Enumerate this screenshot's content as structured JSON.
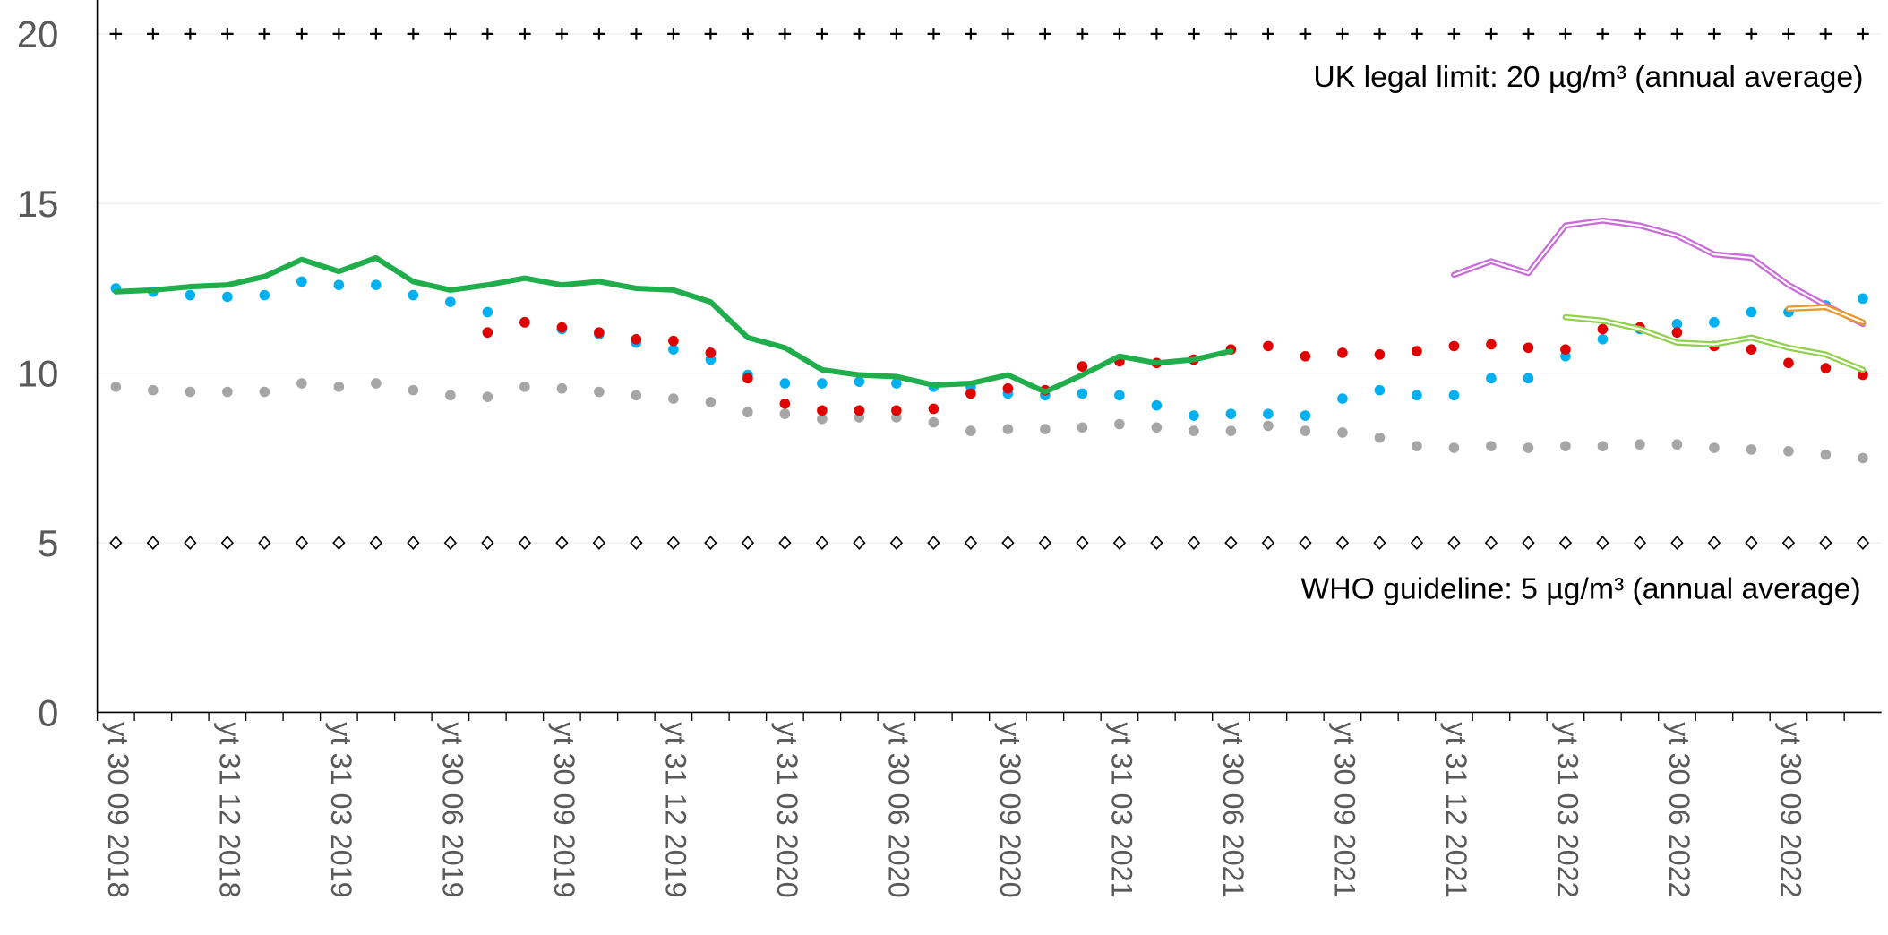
{
  "chart_data": {
    "type": "line",
    "categories": [
      "yt 30 09 2018",
      null,
      null,
      "yt 31 12 2018",
      null,
      null,
      "yt 31 03 2019",
      null,
      null,
      "yt 30 06 2019",
      null,
      null,
      "yt 30 09 2019",
      null,
      null,
      "yt 31 12 2019",
      null,
      null,
      "yt 31 03 2020",
      null,
      null,
      "yt 30 06 2020",
      null,
      null,
      "yt 30 09 2020",
      null,
      null,
      "yt 31 03 2021",
      null,
      null,
      "yt 30 06 2021",
      null,
      null,
      "yt 30 09 2021",
      null,
      null,
      "yt 31 12 2021",
      null,
      null,
      "yt 31 03 2022",
      null,
      null,
      "yt 30 06 2022",
      null,
      null,
      "yt 30 09 2022",
      null,
      null
    ],
    "ylim": [
      0,
      21
    ],
    "yticks": [
      0,
      5,
      10,
      15,
      20
    ],
    "grid": true,
    "annotations": [
      "UK legal limit:  20 µg/m³ (annual average)",
      "WHO guideline:  5 µg/m³ (annual average)"
    ],
    "series": [
      {
        "style": "plus",
        "color": "#000000",
        "values": [
          20,
          20,
          20,
          20,
          20,
          20,
          20,
          20,
          20,
          20,
          20,
          20,
          20,
          20,
          20,
          20,
          20,
          20,
          20,
          20,
          20,
          20,
          20,
          20,
          20,
          20,
          20,
          20,
          20,
          20,
          20,
          20,
          20,
          20,
          20,
          20,
          20,
          20,
          20,
          20,
          20,
          20,
          20,
          20,
          20,
          20,
          20,
          20
        ]
      },
      {
        "style": "diamond",
        "color": "#000000",
        "values": [
          5,
          5,
          5,
          5,
          5,
          5,
          5,
          5,
          5,
          5,
          5,
          5,
          5,
          5,
          5,
          5,
          5,
          5,
          5,
          5,
          5,
          5,
          5,
          5,
          5,
          5,
          5,
          5,
          5,
          5,
          5,
          5,
          5,
          5,
          5,
          5,
          5,
          5,
          5,
          5,
          5,
          5,
          5,
          5,
          5,
          5,
          5,
          5
        ]
      },
      {
        "style": "dots",
        "color": "#a6a6a6",
        "values": [
          9.6,
          9.5,
          9.45,
          9.45,
          9.45,
          9.7,
          9.6,
          9.7,
          9.5,
          9.35,
          9.3,
          9.6,
          9.55,
          9.45,
          9.35,
          9.25,
          9.15,
          8.85,
          8.8,
          8.65,
          8.7,
          8.7,
          8.55,
          8.3,
          8.35,
          8.35,
          8.4,
          8.5,
          8.4,
          8.3,
          8.3,
          8.45,
          8.3,
          8.25,
          8.1,
          7.85,
          7.8,
          7.85,
          7.8,
          7.85,
          7.85,
          7.9,
          7.9,
          7.8,
          7.75,
          7.7,
          7.6,
          7.5
        ]
      },
      {
        "style": "dots",
        "color": "#00b0f0",
        "values": [
          12.5,
          12.4,
          12.3,
          12.25,
          12.3,
          12.7,
          12.6,
          12.6,
          12.3,
          12.1,
          11.8,
          11.5,
          11.3,
          11.15,
          10.9,
          10.7,
          10.4,
          9.95,
          9.7,
          9.7,
          9.75,
          9.7,
          9.6,
          9.6,
          9.4,
          9.35,
          9.4,
          9.35,
          9.05,
          8.75,
          8.8,
          8.8,
          8.75,
          9.25,
          9.5,
          9.35,
          9.35,
          9.85,
          9.85,
          10.5,
          11.0,
          11.3,
          11.45,
          11.5,
          11.8,
          11.8,
          12.0,
          12.2
        ]
      },
      {
        "style": "dots",
        "color": "#e00000",
        "values": [
          null,
          null,
          null,
          null,
          null,
          null,
          null,
          null,
          null,
          null,
          11.2,
          11.5,
          11.35,
          11.2,
          11.0,
          10.95,
          10.6,
          9.85,
          9.1,
          8.9,
          8.9,
          8.9,
          8.95,
          9.4,
          9.55,
          9.5,
          10.2,
          10.35,
          10.3,
          10.4,
          10.7,
          10.8,
          10.5,
          10.6,
          10.55,
          10.65,
          10.8,
          10.85,
          10.75,
          10.7,
          11.3,
          11.35,
          11.2,
          10.8,
          10.7,
          10.3,
          10.15,
          9.95
        ]
      },
      {
        "style": "line",
        "color": "#1fae4b",
        "values": [
          12.4,
          12.45,
          12.55,
          12.6,
          12.85,
          13.35,
          13.0,
          13.4,
          12.7,
          12.45,
          12.6,
          12.8,
          12.6,
          12.7,
          12.5,
          12.45,
          12.1,
          11.05,
          10.75,
          10.1,
          9.95,
          9.9,
          9.65,
          9.7,
          9.95,
          9.45,
          9.95,
          10.5,
          10.3,
          10.4,
          10.65,
          null,
          null,
          null,
          null,
          null,
          null,
          null,
          null,
          null,
          null,
          null,
          null,
          null,
          null,
          null,
          null,
          null
        ]
      },
      {
        "style": "double",
        "color": "#c86dd7",
        "values": [
          null,
          null,
          null,
          null,
          null,
          null,
          null,
          null,
          null,
          null,
          null,
          null,
          null,
          null,
          null,
          null,
          null,
          null,
          null,
          null,
          null,
          null,
          null,
          null,
          null,
          null,
          null,
          null,
          null,
          null,
          null,
          null,
          null,
          null,
          null,
          null,
          12.9,
          13.3,
          12.95,
          14.35,
          14.5,
          14.35,
          14.05,
          13.5,
          13.4,
          12.6,
          12.0,
          11.45
        ]
      },
      {
        "style": "double",
        "color": "#92d050",
        "values": [
          null,
          null,
          null,
          null,
          null,
          null,
          null,
          null,
          null,
          null,
          null,
          null,
          null,
          null,
          null,
          null,
          null,
          null,
          null,
          null,
          null,
          null,
          null,
          null,
          null,
          null,
          null,
          null,
          null,
          null,
          null,
          null,
          null,
          null,
          null,
          null,
          null,
          null,
          null,
          11.65,
          11.55,
          11.3,
          10.9,
          10.85,
          11.05,
          10.75,
          10.55,
          10.1
        ]
      },
      {
        "style": "double",
        "color": "#e59a2c",
        "values": [
          null,
          null,
          null,
          null,
          null,
          null,
          null,
          null,
          null,
          null,
          null,
          null,
          null,
          null,
          null,
          null,
          null,
          null,
          null,
          null,
          null,
          null,
          null,
          null,
          null,
          null,
          null,
          null,
          null,
          null,
          null,
          null,
          null,
          null,
          null,
          null,
          null,
          null,
          null,
          null,
          null,
          null,
          null,
          null,
          null,
          11.9,
          11.95,
          11.5
        ]
      }
    ]
  }
}
